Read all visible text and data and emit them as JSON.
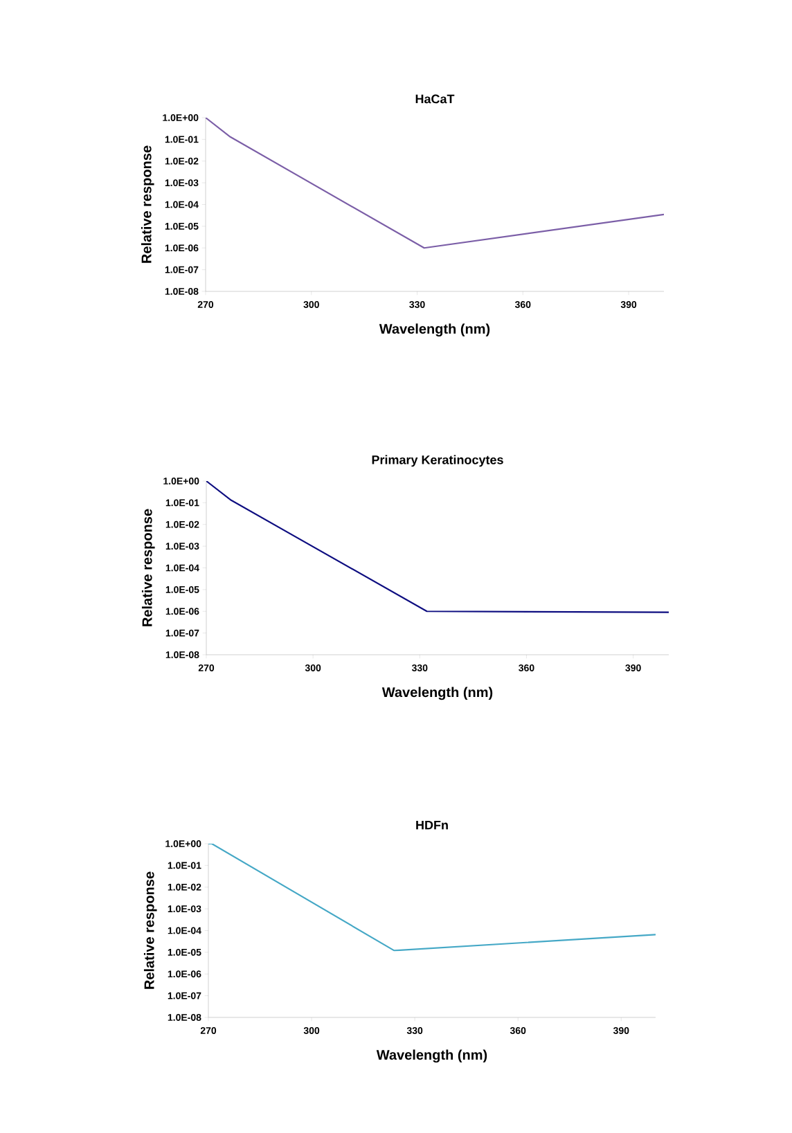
{
  "chart_data": [
    {
      "type": "line",
      "title": "HaCaT",
      "xlabel": "Wavelength (nm)",
      "ylabel": "Relative response",
      "log": "y",
      "x": [
        270,
        277,
        332,
        400
      ],
      "series": [
        {
          "color": "#7b5ea7",
          "values": [
            1,
            0.13,
            1e-06,
            3.5e-05
          ]
        }
      ],
      "xlim": [
        270,
        400
      ],
      "xticks": [
        270,
        300,
        330,
        360,
        390
      ],
      "ylim": [
        1e-08,
        1
      ],
      "yticks": [
        {
          "value": 1e-08,
          "label": "1.0E-08"
        },
        {
          "value": 1e-07,
          "label": "1.0E-07"
        },
        {
          "value": 1e-06,
          "label": "1.0E-06"
        },
        {
          "value": 1e-05,
          "label": "1.0E-05"
        },
        {
          "value": 0.0001,
          "label": "1.0E-04"
        },
        {
          "value": 0.001,
          "label": "1.0E-03"
        },
        {
          "value": 0.01,
          "label": "1.0E-02"
        },
        {
          "value": 0.1,
          "label": "1.0E-01"
        },
        {
          "value": 1,
          "label": "1.0E+00"
        }
      ]
    },
    {
      "type": "line",
      "title": "Primary Keratinocytes",
      "xlabel": "Wavelength (nm)",
      "ylabel": "Relative response",
      "log": "y",
      "x": [
        270,
        277,
        332,
        400
      ],
      "series": [
        {
          "color": "#0d0d80",
          "values": [
            1,
            0.13,
            1e-06,
            9e-07
          ]
        }
      ],
      "xlim": [
        270,
        400
      ],
      "xticks": [
        270,
        300,
        330,
        360,
        390
      ],
      "ylim": [
        1e-08,
        1
      ],
      "yticks": [
        {
          "value": 1e-08,
          "label": "1.0E-08"
        },
        {
          "value": 1e-07,
          "label": "1.0E-07"
        },
        {
          "value": 1e-06,
          "label": "1.0E-06"
        },
        {
          "value": 1e-05,
          "label": "1.0E-05"
        },
        {
          "value": 0.0001,
          "label": "1.0E-04"
        },
        {
          "value": 0.001,
          "label": "1.0E-03"
        },
        {
          "value": 0.01,
          "label": "1.0E-02"
        },
        {
          "value": 0.1,
          "label": "1.0E-01"
        },
        {
          "value": 1,
          "label": "1.0E+00"
        }
      ]
    },
    {
      "type": "line",
      "title": "HDFn",
      "xlabel": "Wavelength (nm)",
      "ylabel": "Relative response",
      "log": "y",
      "x": [
        270,
        271,
        324,
        400
      ],
      "series": [
        {
          "color": "#45a8c6",
          "values": [
            1,
            1,
            1.2e-05,
            6.5e-05
          ]
        }
      ],
      "xlim": [
        270,
        400
      ],
      "xticks": [
        270,
        300,
        330,
        360,
        390
      ],
      "ylim": [
        1e-08,
        1
      ],
      "yticks": [
        {
          "value": 1e-08,
          "label": "1.0E-08"
        },
        {
          "value": 1e-07,
          "label": "1.0E-07"
        },
        {
          "value": 1e-06,
          "label": "1.0E-06"
        },
        {
          "value": 1e-05,
          "label": "1.0E-05"
        },
        {
          "value": 0.0001,
          "label": "1.0E-04"
        },
        {
          "value": 0.001,
          "label": "1.0E-03"
        },
        {
          "value": 0.01,
          "label": "1.0E-02"
        },
        {
          "value": 0.1,
          "label": "1.0E-01"
        },
        {
          "value": 1,
          "label": "1.0E+00"
        }
      ]
    }
  ]
}
